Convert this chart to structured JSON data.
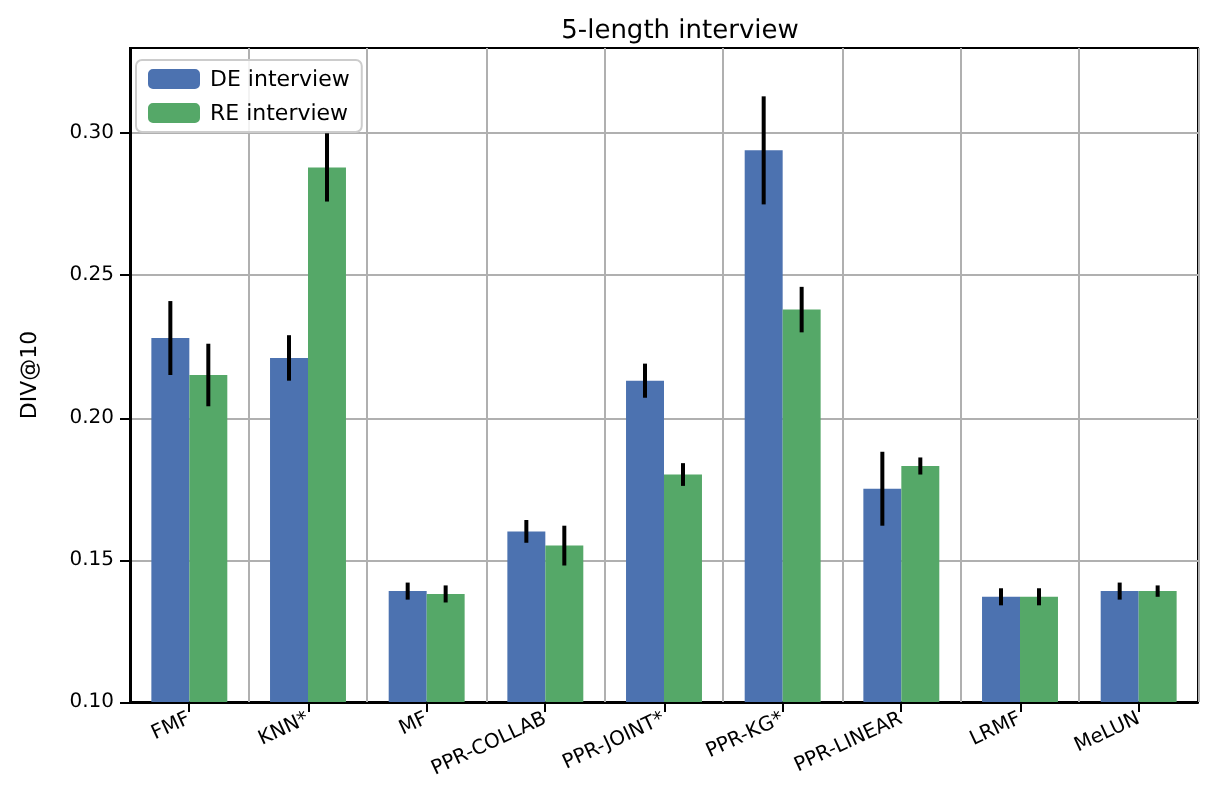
{
  "chart_data": {
    "type": "bar",
    "title": "5-length interview",
    "ylabel": "DIV@10",
    "categories": [
      "FMF",
      "KNN*",
      "MF",
      "PPR-COLLAB",
      "PPR-JOINT*",
      "PPR-KG*",
      "PPR-LINEAR",
      "LRMF",
      "MeLUN"
    ],
    "series": [
      {
        "name": "DE interview",
        "color": "#4c72b0",
        "values": [
          0.228,
          0.221,
          0.139,
          0.16,
          0.213,
          0.294,
          0.175,
          0.137,
          0.139
        ],
        "errors": [
          0.013,
          0.008,
          0.003,
          0.004,
          0.006,
          0.019,
          0.013,
          0.003,
          0.003
        ]
      },
      {
        "name": "RE interview",
        "color": "#55a868",
        "values": [
          0.215,
          0.288,
          0.138,
          0.155,
          0.18,
          0.238,
          0.183,
          0.137,
          0.139
        ],
        "errors": [
          0.011,
          0.012,
          0.003,
          0.007,
          0.004,
          0.008,
          0.003,
          0.003,
          0.002
        ]
      }
    ],
    "ylim": [
      0.1,
      0.33
    ],
    "yticks": [
      {
        "value": 0.1,
        "label": "0.10"
      },
      {
        "value": 0.15,
        "label": "0.15"
      },
      {
        "value": 0.2,
        "label": "0.20"
      },
      {
        "value": 0.25,
        "label": "0.25"
      },
      {
        "value": 0.3,
        "label": "0.30"
      }
    ],
    "grid": true,
    "legend": "top left"
  }
}
